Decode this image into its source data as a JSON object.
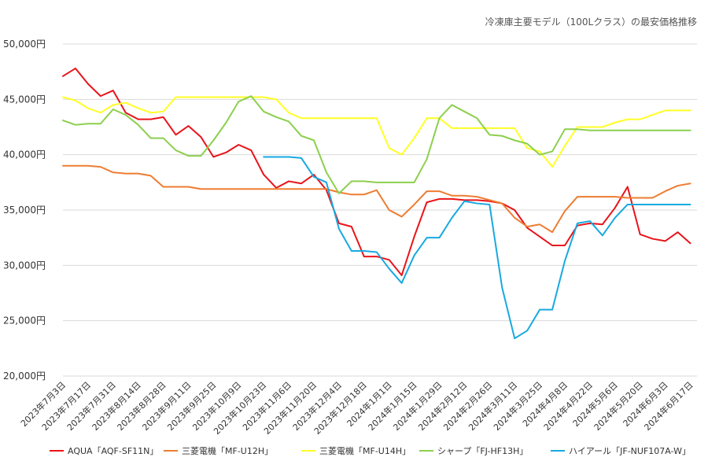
{
  "chart_data": {
    "type": "line",
    "title": "冷凍庫主要モデル（100Lクラス）の最安価格推移",
    "xlabel": "",
    "ylabel": "",
    "ylim": [
      20000,
      50000
    ],
    "yticks": [
      20000,
      25000,
      30000,
      35000,
      40000,
      45000,
      50000
    ],
    "ytick_labels": [
      "20,000円",
      "25,000円",
      "30,000円",
      "35,000円",
      "40,000円",
      "45,000円",
      "50,000円"
    ],
    "grid": true,
    "legend_position": "bottom",
    "x_count": 51,
    "x_tick_labels": [
      {
        "index": 0,
        "label": "2023年7月3日"
      },
      {
        "index": 2,
        "label": "2023年7月17日"
      },
      {
        "index": 4,
        "label": "2023年7月31日"
      },
      {
        "index": 6,
        "label": "2023年8月14日"
      },
      {
        "index": 8,
        "label": "2023年8月28日"
      },
      {
        "index": 10,
        "label": "2023年9月11日"
      },
      {
        "index": 12,
        "label": "2023年9月25日"
      },
      {
        "index": 14,
        "label": "2023年10月9日"
      },
      {
        "index": 16,
        "label": "2023年10月23日"
      },
      {
        "index": 18,
        "label": "2023年11月6日"
      },
      {
        "index": 20,
        "label": "2023年11月20日"
      },
      {
        "index": 22,
        "label": "2023年12月4日"
      },
      {
        "index": 24,
        "label": "2023年12月18日"
      },
      {
        "index": 26,
        "label": "2024年1月1日"
      },
      {
        "index": 28,
        "label": "2024年1月15日"
      },
      {
        "index": 30,
        "label": "2024年1月29日"
      },
      {
        "index": 32,
        "label": "2024年2月12日"
      },
      {
        "index": 34,
        "label": "2024年2月26日"
      },
      {
        "index": 36,
        "label": "2024年3月11日"
      },
      {
        "index": 38,
        "label": "2024年3月25日"
      },
      {
        "index": 40,
        "label": "2024年4月8日"
      },
      {
        "index": 42,
        "label": "2024年4月22日"
      },
      {
        "index": 44,
        "label": "2024年5月6日"
      },
      {
        "index": 46,
        "label": "2024年5月20日"
      },
      {
        "index": 48,
        "label": "2024年6月3日"
      },
      {
        "index": 50,
        "label": "2024年6月17日"
      }
    ],
    "series": [
      {
        "name": "AQUA「AQF-SF11N」",
        "color": "#e8141a",
        "values": [
          47100,
          47800,
          46400,
          45300,
          45800,
          43800,
          43200,
          43200,
          43400,
          41800,
          42600,
          41600,
          39800,
          40200,
          40900,
          40400,
          38200,
          37000,
          37600,
          37400,
          38200,
          36800,
          33800,
          33500,
          30800,
          30800,
          30500,
          29100,
          32600,
          35700,
          36000,
          36000,
          35900,
          35900,
          35800,
          35600,
          35000,
          33400,
          32600,
          31800,
          31800,
          33600,
          33800,
          33700,
          35200,
          37100,
          32800,
          32400,
          32200,
          33000,
          32000
        ]
      },
      {
        "name": "三菱電機「MF-U12H」",
        "color": "#ed7d31",
        "values": [
          39000,
          39000,
          39000,
          38900,
          38400,
          38300,
          38300,
          38100,
          37100,
          37100,
          37100,
          36900,
          36900,
          36900,
          36900,
          36900,
          36900,
          36900,
          36900,
          36900,
          36900,
          36900,
          36600,
          36400,
          36400,
          36800,
          35000,
          34400,
          35500,
          36700,
          36700,
          36300,
          36300,
          36200,
          35900,
          35600,
          34300,
          33500,
          33700,
          33000,
          34900,
          36200,
          36200,
          36200,
          36200,
          36100,
          36100,
          36100,
          36700,
          37200,
          37400
        ]
      },
      {
        "name": "三菱電機「MF-U14H」",
        "color": "#ffff26",
        "values": [
          45200,
          44900,
          44200,
          43800,
          44500,
          44700,
          44200,
          43800,
          43900,
          45200,
          45200,
          45200,
          45200,
          45200,
          45200,
          45200,
          45200,
          45000,
          43800,
          43300,
          43300,
          43300,
          43300,
          43300,
          43300,
          43300,
          40600,
          40000,
          41500,
          43300,
          43300,
          42400,
          42400,
          42400,
          42400,
          42400,
          42400,
          40600,
          40300,
          38900,
          40800,
          42500,
          42500,
          42500,
          42900,
          43200,
          43200,
          43600,
          44000,
          44000,
          44000
        ]
      },
      {
        "name": "シャープ「FJ-HF13H」",
        "color": "#8ccf4d",
        "values": [
          43100,
          42700,
          42800,
          42800,
          44100,
          43600,
          42700,
          41500,
          41500,
          40400,
          39900,
          39900,
          41300,
          42900,
          44800,
          45300,
          43900,
          43400,
          43000,
          41700,
          41300,
          38400,
          36500,
          37600,
          37600,
          37500,
          37500,
          37500,
          37500,
          39600,
          43300,
          44500,
          43900,
          43300,
          41800,
          41700,
          41300,
          41000,
          40000,
          40300,
          42300,
          42300,
          42200,
          42200,
          42200,
          42200,
          42200,
          42200,
          42200,
          42200,
          42200
        ]
      },
      {
        "name": "ハイアール「JF-NUF107A-W」",
        "color": "#17a9e1",
        "values": [
          null,
          null,
          null,
          null,
          null,
          null,
          null,
          null,
          null,
          null,
          null,
          null,
          null,
          null,
          null,
          null,
          39800,
          39800,
          39800,
          39700,
          38000,
          37500,
          33300,
          31300,
          31300,
          31200,
          29700,
          28400,
          30900,
          32500,
          32500,
          34300,
          35800,
          35600,
          35500,
          28000,
          23400,
          24100,
          26000,
          26000,
          30400,
          33800,
          34000,
          32700,
          34300,
          35500,
          35500,
          35500,
          35500,
          35500,
          35500
        ]
      }
    ]
  }
}
